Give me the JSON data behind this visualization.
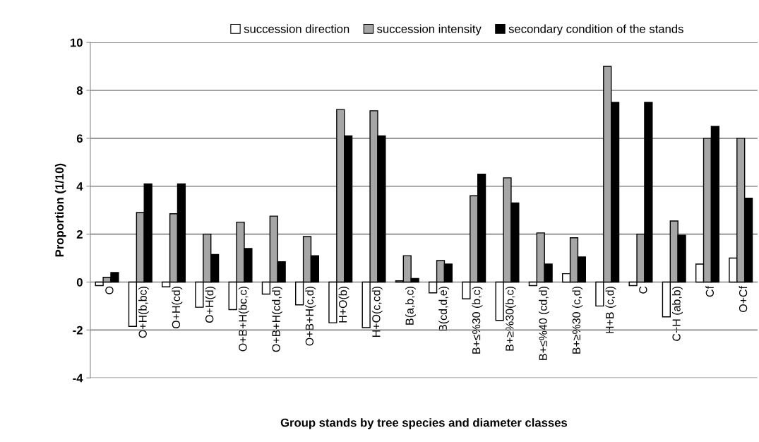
{
  "chart_data": {
    "type": "bar",
    "xlabel": "Group stands by tree species and diameter classes",
    "ylabel": "Proportion (1/10)",
    "categories": [
      "O",
      "O+H(b,bc)",
      "O+H(cd)",
      "O+H(d)",
      "O+B+H(bc,c)",
      "O+B+H(cd,d)",
      "O+B+H(c,d)",
      "H+O(b)",
      "H+O(c,cd)",
      "B(a,b,c)",
      "B(cd,d,e)",
      "B+≤%30 (b,c)",
      "B+≥%30(b,c)",
      "B+≤%40 (cd,d)",
      "B+≥%30 (c,d)",
      "H+B (c,d)",
      "C",
      "C+H (ab,b)",
      "Cf",
      "O+Cf"
    ],
    "series": [
      {
        "name": "succession direction",
        "color": "#ffffff",
        "values": [
          -0.15,
          -1.85,
          -0.2,
          -1.05,
          -1.15,
          -0.5,
          -0.95,
          -1.7,
          -1.9,
          0.05,
          -0.45,
          -0.7,
          -1.6,
          -0.15,
          0.35,
          -1.0,
          -0.15,
          -1.45,
          0.75,
          1.0
        ]
      },
      {
        "name": "succession intensity",
        "color": "#a6a6a6",
        "values": [
          0.2,
          2.9,
          2.85,
          2.0,
          2.5,
          2.75,
          1.9,
          7.2,
          7.15,
          1.1,
          0.9,
          3.6,
          4.35,
          2.05,
          1.85,
          9.0,
          2.0,
          2.55,
          6.0,
          6.0
        ]
      },
      {
        "name": "secondary condition of the stands",
        "color": "#000000",
        "values": [
          0.4,
          4.1,
          4.1,
          1.15,
          1.4,
          0.85,
          1.1,
          6.1,
          6.1,
          0.15,
          0.75,
          4.5,
          3.3,
          0.75,
          1.05,
          7.5,
          7.5,
          1.95,
          6.5,
          3.5
        ]
      }
    ],
    "ylim": [
      -4,
      10
    ],
    "yticks": [
      -4,
      -2,
      0,
      2,
      4,
      6,
      8,
      10
    ],
    "grid": "y",
    "legend": "top"
  }
}
